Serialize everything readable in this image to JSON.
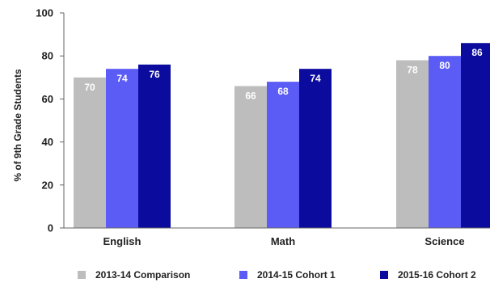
{
  "chart_data": {
    "type": "bar",
    "title": "",
    "xlabel": "",
    "ylabel": "% of 9th Grade Students",
    "ylim": [
      0,
      100
    ],
    "yticks": [
      0,
      20,
      40,
      60,
      80,
      100
    ],
    "categories": [
      "English",
      "Math",
      "Science"
    ],
    "series": [
      {
        "name": "2013-14 Comparison",
        "color": "#bdbdbd",
        "values": [
          70,
          66,
          78
        ]
      },
      {
        "name": "2014-15 Cohort 1",
        "color": "#5b5bf5",
        "values": [
          74,
          68,
          80
        ]
      },
      {
        "name": "2015-16 Cohort 2",
        "color": "#0b0b9e",
        "values": [
          76,
          74,
          86
        ]
      }
    ],
    "grid": false,
    "legend_position": "bottom"
  }
}
